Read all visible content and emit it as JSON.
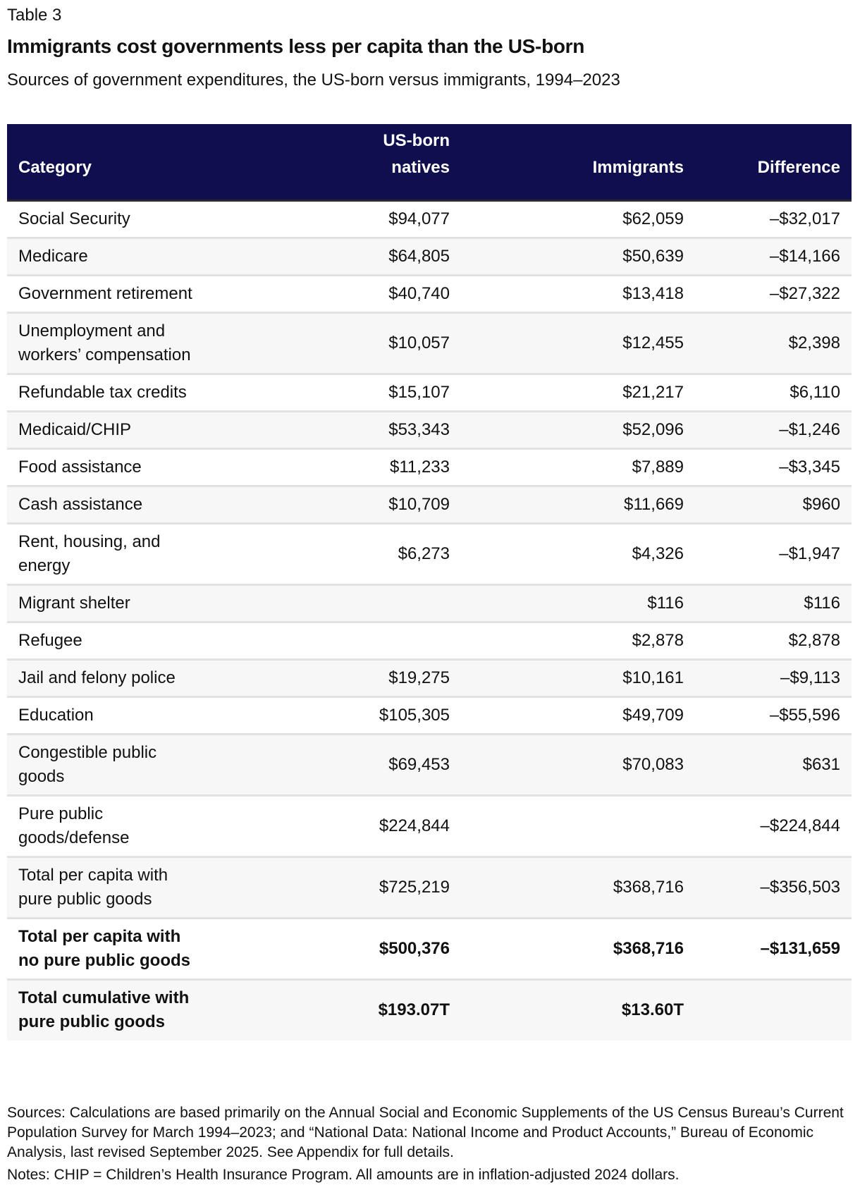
{
  "label": "Table 3",
  "title": "Immigrants cost governments less per capita than the US-born",
  "subtitle": "Sources of government expenditures, the US-born versus immigrants, 1994–2023",
  "header": {
    "category": "Category",
    "us_born_line1": "US-born",
    "us_born_line2": "natives",
    "immigrants": "Immigrants",
    "difference": "Difference"
  },
  "header_color": "#0f0f4f",
  "rows": [
    {
      "category": "Social Security",
      "us_born": "$94,077",
      "immigrants": "$62,059",
      "difference": "–$32,017"
    },
    {
      "category": "Medicare",
      "us_born": "$64,805",
      "immigrants": "$50,639",
      "difference": "–$14,166"
    },
    {
      "category": "Government retirement",
      "us_born": "$40,740",
      "immigrants": "$13,418",
      "difference": "–$27,322"
    },
    {
      "category": "Unemployment and workers’ compensation",
      "us_born": "$10,057",
      "immigrants": "$12,455",
      "difference": "$2,398"
    },
    {
      "category": "Refundable tax credits",
      "us_born": "$15,107",
      "immigrants": "$21,217",
      "difference": "$6,110"
    },
    {
      "category": "Medicaid/CHIP",
      "us_born": "$53,343",
      "immigrants": "$52,096",
      "difference": "–$1,246"
    },
    {
      "category": "Food assistance",
      "us_born": "$11,233",
      "immigrants": "$7,889",
      "difference": "–$3,345"
    },
    {
      "category": "Cash assistance",
      "us_born": "$10,709",
      "immigrants": "$11,669",
      "difference": "$960"
    },
    {
      "category": "Rent, housing, and energy",
      "us_born": "$6,273",
      "immigrants": "$4,326",
      "difference": "–$1,947"
    },
    {
      "category": "Migrant shelter",
      "us_born": "",
      "immigrants": "$116",
      "difference": "$116"
    },
    {
      "category": "Refugee",
      "us_born": "",
      "immigrants": "$2,878",
      "difference": "$2,878"
    },
    {
      "category": "Jail and felony police",
      "us_born": "$19,275",
      "immigrants": "$10,161",
      "difference": "–$9,113"
    },
    {
      "category": "Education",
      "us_born": "$105,305",
      "immigrants": "$49,709",
      "difference": "–$55,596"
    },
    {
      "category": "Congestible public goods",
      "us_born": "$69,453",
      "immigrants": "$70,083",
      "difference": "$631"
    },
    {
      "category": "Pure public goods/defense",
      "us_born": "$224,844",
      "immigrants": "",
      "difference": "–$224,844"
    },
    {
      "category": "Total per capita with pure public goods",
      "us_born": "$725,219",
      "immigrants": "$368,716",
      "difference": "–$356,503"
    },
    {
      "category": "Total per capita with no pure public goods",
      "us_born": "$500,376",
      "immigrants": "$368,716",
      "difference": "–$131,659"
    },
    {
      "category": "Total cumulative with pure public goods",
      "us_born": "$193.07T",
      "immigrants": "$13.60T",
      "difference": ""
    }
  ],
  "footer": {
    "sources": "Sources: Calculations are based primarily on the Annual Social and Economic Supplements of the US Census Bureau’s Current Population Survey for March 1994–2023; and “National Data: National Income and Product Accounts,” Bureau of Economic Analysis, last revised September 2025. See Appendix for full details.",
    "notes": "Notes: CHIP = Children’s Health Insurance Program. All amounts are in inflation-adjusted 2024 dollars."
  }
}
